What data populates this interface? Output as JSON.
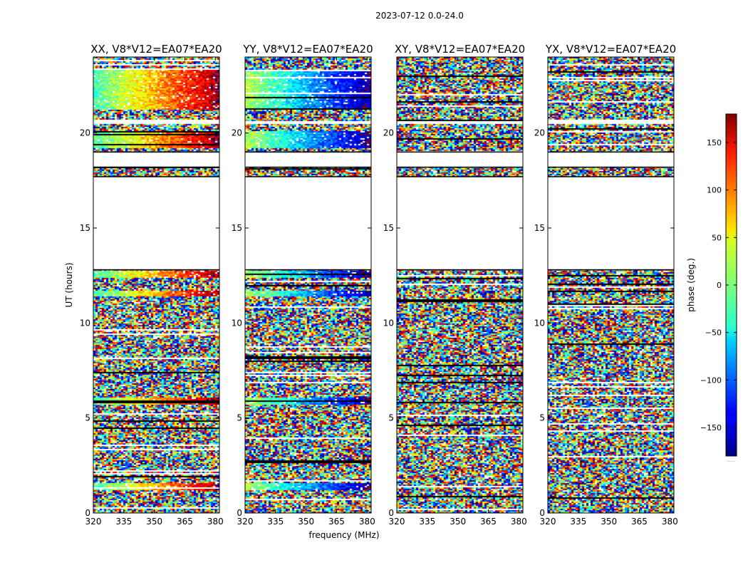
{
  "figure": {
    "suptitle": "2023-07-12 0.0-24.0",
    "xlabel": "frequency (MHz)",
    "ylabel": "UT (hours)"
  },
  "chart_data": {
    "type": "heatmap",
    "xlim": [
      320,
      382
    ],
    "ylim": [
      0,
      24
    ],
    "xticks": [
      320,
      335,
      350,
      365,
      380
    ],
    "yticks": [
      0,
      5,
      10,
      15,
      20
    ],
    "panels": [
      {
        "title": "XX, V8*V12=EA07*EA20",
        "signal_bands": [
          [
            21.2,
            23.3
          ],
          [
            19.2,
            20.1
          ],
          [
            5.7,
            6.1
          ],
          [
            1.2,
            1.6
          ],
          [
            11.4,
            11.7
          ],
          [
            12.35,
            12.75
          ]
        ],
        "phase_start": -20,
        "phase_end": 170
      },
      {
        "title": "YY, V8*V12=EA07*EA20",
        "signal_bands": [
          [
            21.2,
            23.3
          ],
          [
            19.2,
            20.1
          ],
          [
            5.7,
            6.1
          ],
          [
            1.2,
            1.6
          ],
          [
            11.4,
            11.7
          ],
          [
            12.35,
            12.75
          ]
        ],
        "phase_start": 20,
        "phase_end": -170
      },
      {
        "title": "XY, V8*V12=EA07*EA20",
        "signal_bands": [],
        "phase_start": 0,
        "phase_end": 0
      },
      {
        "title": "YX, V8*V12=EA07*EA20",
        "signal_bands": [],
        "phase_start": 0,
        "phase_end": 0
      }
    ],
    "data_rows": [
      [
        0,
        18.9
      ],
      [
        19.0,
        20.5
      ],
      [
        20.6,
        24
      ]
    ],
    "flagged_gaps": [
      [
        12.8,
        17.7
      ],
      [
        18.2,
        19.0
      ]
    ],
    "colorbar": {
      "label": "phase (deg.)",
      "range": [
        -180,
        180
      ],
      "ticks": [
        150,
        100,
        50,
        0,
        -50,
        -100,
        -150
      ],
      "tick_labels": [
        "150",
        "100",
        "50",
        "0",
        "−50",
        "−100",
        "−150"
      ],
      "colormap": "jet"
    }
  }
}
